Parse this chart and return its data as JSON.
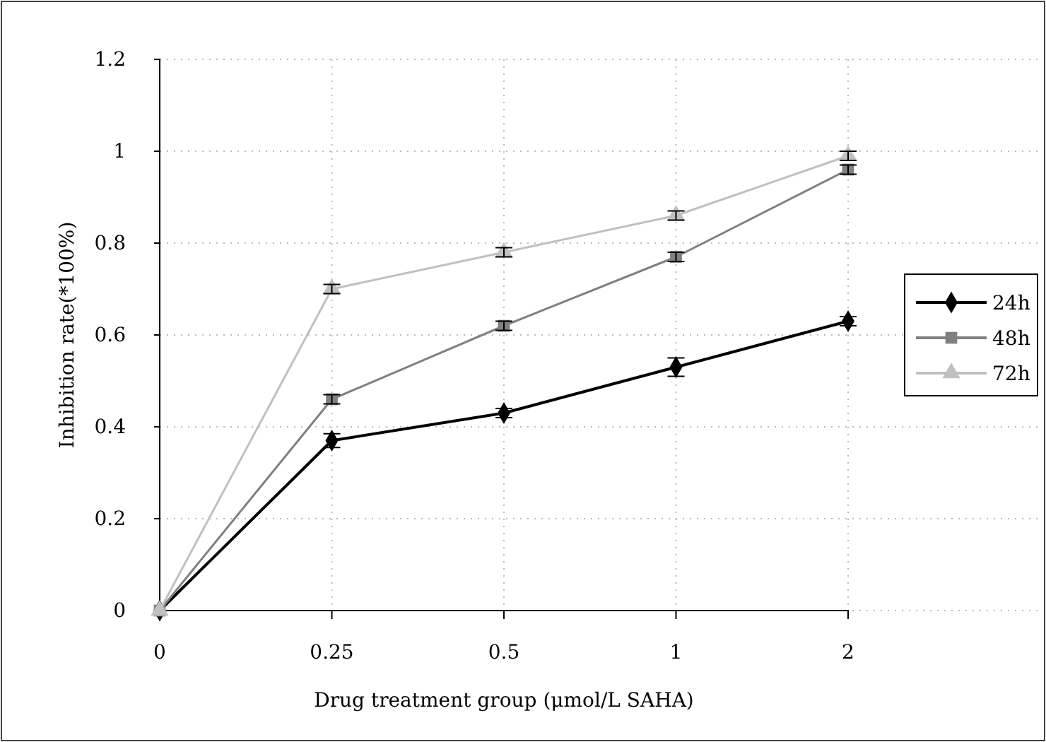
{
  "chart_data": {
    "type": "line",
    "xlabel": "Drug treatment group (μmol/L SAHA)",
    "ylabel": "Inhibition rate(*100%)",
    "categories": [
      "0",
      "0.25",
      "0.5",
      "1",
      "2"
    ],
    "ylim": [
      0,
      1.2
    ],
    "yticks": [
      0,
      0.2,
      0.4,
      0.6,
      0.8,
      1,
      1.2
    ],
    "grid": true,
    "legend": "right",
    "line_style": "solid",
    "series": [
      {
        "name": "24h",
        "color": "#000000",
        "marker": "diamond",
        "values": [
          0,
          0.37,
          0.43,
          0.53,
          0.63
        ],
        "errors": [
          null,
          0.015,
          0.01,
          0.02,
          0.01
        ]
      },
      {
        "name": "48h",
        "color": "#808080",
        "marker": "square",
        "values": [
          0,
          0.46,
          0.62,
          0.77,
          0.96
        ],
        "errors": [
          null,
          0.01,
          0.01,
          0.01,
          0.01
        ]
      },
      {
        "name": "72h",
        "color": "#c0c0c0",
        "marker": "triangle",
        "values": [
          0,
          0.7,
          0.78,
          0.86,
          0.99
        ],
        "errors": [
          null,
          0.01,
          0.01,
          0.01,
          0.01
        ]
      }
    ]
  }
}
